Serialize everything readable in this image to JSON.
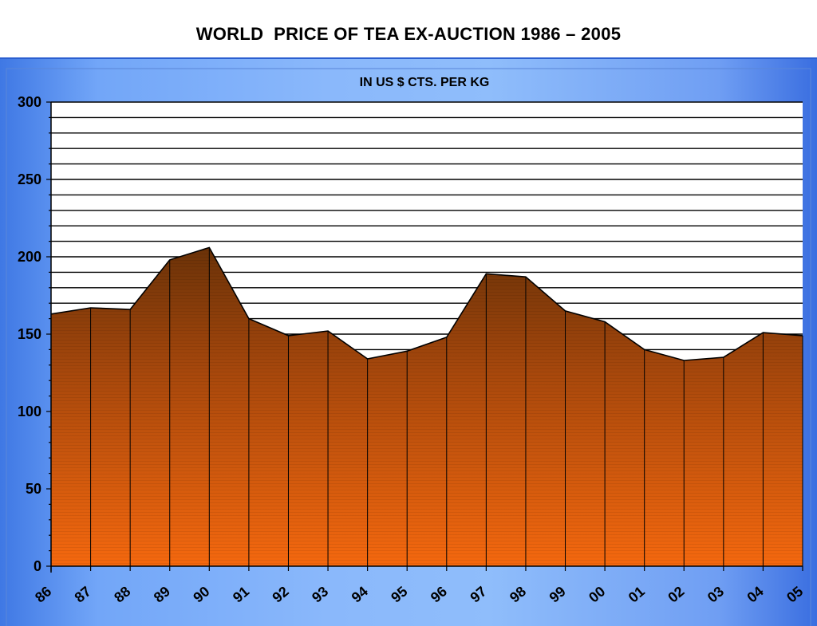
{
  "page_title": "WORLD  PRICE OF TEA EX-AUCTION 1986 – 2005",
  "chart_data": {
    "type": "area",
    "title": "WORLD  PRICE OF TEA EX-AUCTION 1986 – 2005",
    "unit_label": "IN US $ CTS. PER KG",
    "categories": [
      "86",
      "87",
      "88",
      "89",
      "90",
      "91",
      "92",
      "93",
      "94",
      "95",
      "96",
      "97",
      "98",
      "99",
      "00",
      "01",
      "02",
      "03",
      "04",
      "05"
    ],
    "values": [
      163,
      167,
      166,
      198,
      206,
      160,
      149,
      152,
      134,
      139,
      148,
      189,
      187,
      165,
      158,
      140,
      133,
      135,
      151,
      149
    ],
    "ylim": [
      0,
      300
    ],
    "yticks": [
      0,
      50,
      100,
      150,
      200,
      250,
      300
    ],
    "grid": true,
    "legend": "none",
    "colors": {
      "fill_top": "#6b3208",
      "fill_bottom": "#f5680e",
      "outline": "#000000",
      "plot_bg": "#ffffff",
      "gridline": "#000000"
    }
  }
}
